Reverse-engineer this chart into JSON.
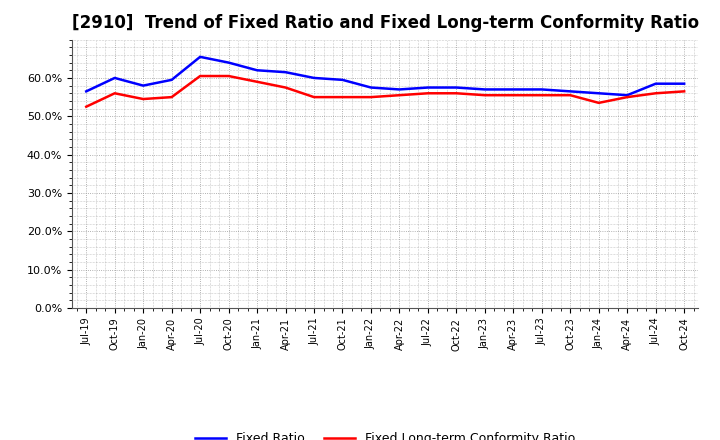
{
  "title": "[2910]  Trend of Fixed Ratio and Fixed Long-term Conformity Ratio",
  "x_labels": [
    "Jul-19",
    "Oct-19",
    "Jan-20",
    "Apr-20",
    "Jul-20",
    "Oct-20",
    "Jan-21",
    "Apr-21",
    "Jul-21",
    "Oct-21",
    "Jan-22",
    "Apr-22",
    "Jul-22",
    "Oct-22",
    "Jan-23",
    "Apr-23",
    "Jul-23",
    "Oct-23",
    "Jan-24",
    "Apr-24",
    "Jul-24",
    "Oct-24"
  ],
  "fixed_ratio": [
    56.5,
    60.0,
    58.0,
    59.5,
    65.5,
    64.0,
    62.0,
    61.5,
    60.0,
    59.5,
    57.5,
    57.0,
    57.5,
    57.5,
    57.0,
    57.0,
    57.0,
    56.5,
    56.0,
    55.5,
    58.5,
    58.5
  ],
  "fixed_lt_ratio": [
    52.5,
    56.0,
    54.5,
    55.0,
    60.5,
    60.5,
    59.0,
    57.5,
    55.0,
    55.0,
    55.0,
    55.5,
    56.0,
    56.0,
    55.5,
    55.5,
    55.5,
    55.5,
    53.5,
    55.0,
    56.0,
    56.5
  ],
  "fixed_ratio_color": "#0000ff",
  "fixed_lt_ratio_color": "#ff0000",
  "ylim": [
    0.0,
    70.0
  ],
  "yticks": [
    0.0,
    10.0,
    20.0,
    30.0,
    40.0,
    50.0,
    60.0
  ],
  "background_color": "#ffffff",
  "grid_color": "#999999",
  "title_fontsize": 12,
  "legend_fixed": "Fixed Ratio",
  "legend_lt": "Fixed Long-term Conformity Ratio",
  "line_width": 1.8
}
